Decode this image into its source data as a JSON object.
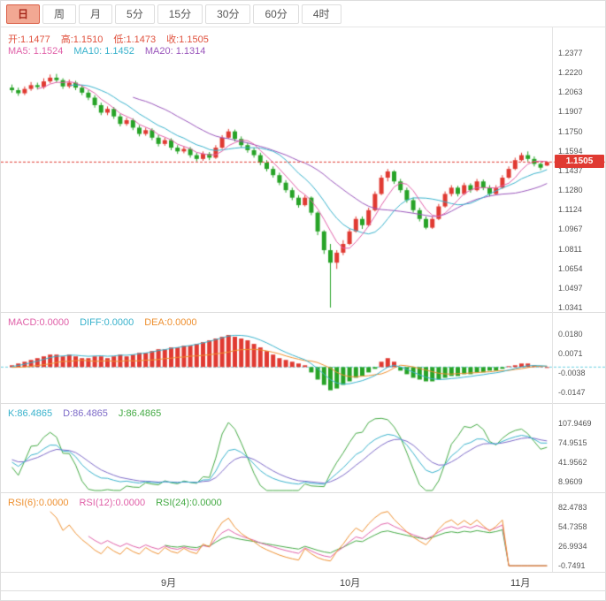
{
  "toolbar": {
    "tabs": [
      {
        "label": "日",
        "name": "day",
        "active": true
      },
      {
        "label": "周",
        "name": "week",
        "active": false
      },
      {
        "label": "月",
        "name": "month",
        "active": false
      },
      {
        "label": "5分",
        "name": "5min",
        "active": false
      },
      {
        "label": "15分",
        "name": "15min",
        "active": false
      },
      {
        "label": "30分",
        "name": "30min",
        "active": false
      },
      {
        "label": "60分",
        "name": "60min",
        "active": false
      },
      {
        "label": "4时",
        "name": "4hour",
        "active": false
      }
    ]
  },
  "main_chart": {
    "ohlc": {
      "open": "开:1.1477",
      "high": "高:1.1510",
      "low": "低:1.1473",
      "close": "收:1.1505"
    },
    "ma": {
      "ma5": "MA5: 1.1524",
      "ma10": "MA10: 1.1452",
      "ma20": "MA20: 1.1314"
    },
    "y_axis": [
      "1.2377",
      "1.2220",
      "1.2063",
      "1.1907",
      "1.1750",
      "1.1594",
      "1.1437",
      "1.1280",
      "1.1124",
      "1.0967",
      "1.0811",
      "1.0654",
      "1.0497",
      "1.0341"
    ],
    "current_price": "1.1505"
  },
  "macd_panel": {
    "header": {
      "macd": "MACD:0.0000",
      "diff": "DIFF:0.0000",
      "dea": "DEA:0.0000"
    },
    "y_axis": [
      "0.0180",
      "0.0071",
      "-0.0038",
      "-0.0147"
    ]
  },
  "kdj_panel": {
    "header": {
      "k": "K:86.4865",
      "d": "D:86.4865",
      "j": "J:86.4865"
    },
    "y_axis": [
      "107.9469",
      "74.9515",
      "41.9562",
      "8.9609"
    ]
  },
  "rsi_panel": {
    "header": {
      "r6": "RSI(6):0.0000",
      "r12": "RSI(12):0.0000",
      "r24": "RSI(24):0.0000"
    },
    "y_axis": [
      "82.4783",
      "54.7358",
      "26.9934",
      "-0.7491"
    ]
  },
  "x_axis": {
    "labels": [
      "9月",
      "10月",
      "11月"
    ]
  },
  "colors": {
    "up": "#e03a32",
    "down": "#27a327",
    "badge": "#e03a32",
    "ma5": "#e060a8",
    "ma10": "#38b2cc",
    "ma20": "#9955bb",
    "diff": "#38b2cc",
    "dea": "#ee9030",
    "dashed": "#69cfe0",
    "k": "#38b2cc",
    "d": "#7d6ac8",
    "j": "#44aa44",
    "rsi6": "#ee9030",
    "rsi12": "#e060a8",
    "rsi24": "#44aa44"
  },
  "chart_data": [
    {
      "id": "price",
      "type": "candlestick",
      "title": "EUR/USD daily candles with MA5/MA10/MA20",
      "y_ticks": [
        1.2377,
        1.222,
        1.2063,
        1.1907,
        1.175,
        1.1594,
        1.1437,
        1.128,
        1.1124,
        1.0967,
        1.0811,
        1.0654,
        1.0497,
        1.0341
      ],
      "x_labels": [
        "9月",
        "10月",
        "11月"
      ],
      "last_close": 1.1505,
      "candles": [
        [
          1.21,
          1.2125,
          1.206,
          1.208
        ],
        [
          1.208,
          1.21,
          1.2035,
          1.2055
        ],
        [
          1.2055,
          1.211,
          1.204,
          1.209
        ],
        [
          1.209,
          1.2145,
          1.2075,
          1.212
        ],
        [
          1.212,
          1.214,
          1.2085,
          1.2105
        ],
        [
          1.2105,
          1.2175,
          1.209,
          1.215
        ],
        [
          1.215,
          1.2205,
          1.2135,
          1.218
        ],
        [
          1.218,
          1.221,
          1.214,
          1.216
        ],
        [
          1.216,
          1.2175,
          1.209,
          1.211
        ],
        [
          1.211,
          1.2165,
          1.2095,
          1.214
        ],
        [
          1.214,
          1.2155,
          1.208,
          1.21
        ],
        [
          1.21,
          1.212,
          1.204,
          1.206
        ],
        [
          1.206,
          1.208,
          1.2,
          1.202
        ],
        [
          1.202,
          1.204,
          1.194,
          1.196
        ],
        [
          1.196,
          1.198,
          1.188,
          1.19
        ],
        [
          1.19,
          1.195,
          1.188,
          1.193
        ],
        [
          1.193,
          1.1945,
          1.185,
          1.187
        ],
        [
          1.187,
          1.189,
          1.179,
          1.181
        ],
        [
          1.181,
          1.186,
          1.1795,
          1.184
        ],
        [
          1.184,
          1.1855,
          1.176,
          1.178
        ],
        [
          1.178,
          1.18,
          1.171,
          1.173
        ],
        [
          1.173,
          1.178,
          1.1715,
          1.176
        ],
        [
          1.176,
          1.1775,
          1.168,
          1.17
        ],
        [
          1.17,
          1.172,
          1.163,
          1.165
        ],
        [
          1.165,
          1.17,
          1.1635,
          1.168
        ],
        [
          1.168,
          1.1695,
          1.16,
          1.162
        ],
        [
          1.162,
          1.164,
          1.157,
          1.159
        ],
        [
          1.159,
          1.163,
          1.1575,
          1.161
        ],
        [
          1.161,
          1.1625,
          1.154,
          1.156
        ],
        [
          1.156,
          1.158,
          1.151,
          1.153
        ],
        [
          1.153,
          1.159,
          1.1515,
          1.157
        ],
        [
          1.157,
          1.1585,
          1.152,
          1.154
        ],
        [
          1.154,
          1.164,
          1.153,
          1.162
        ],
        [
          1.162,
          1.172,
          1.161,
          1.17
        ],
        [
          1.17,
          1.177,
          1.169,
          1.175
        ],
        [
          1.175,
          1.1765,
          1.167,
          1.169
        ],
        [
          1.169,
          1.171,
          1.162,
          1.164
        ],
        [
          1.164,
          1.166,
          1.158,
          1.16
        ],
        [
          1.16,
          1.162,
          1.154,
          1.156
        ],
        [
          1.156,
          1.158,
          1.148,
          1.15
        ],
        [
          1.15,
          1.152,
          1.143,
          1.145
        ],
        [
          1.145,
          1.147,
          1.138,
          1.14
        ],
        [
          1.14,
          1.142,
          1.132,
          1.134
        ],
        [
          1.134,
          1.136,
          1.126,
          1.128
        ],
        [
          1.128,
          1.13,
          1.12,
          1.122
        ],
        [
          1.122,
          1.124,
          1.114,
          1.116
        ],
        [
          1.116,
          1.124,
          1.115,
          1.122
        ],
        [
          1.122,
          1.123,
          1.108,
          1.11
        ],
        [
          1.11,
          1.111,
          1.092,
          1.095
        ],
        [
          1.095,
          1.096,
          1.077,
          1.08
        ],
        [
          1.08,
          1.085,
          1.0341,
          1.07
        ],
        [
          1.07,
          1.08,
          1.065,
          1.078
        ],
        [
          1.078,
          1.088,
          1.076,
          1.085
        ],
        [
          1.085,
          1.097,
          1.084,
          1.095
        ],
        [
          1.095,
          1.107,
          1.094,
          1.105
        ],
        [
          1.105,
          1.107,
          1.097,
          1.1
        ],
        [
          1.1,
          1.114,
          1.099,
          1.112
        ],
        [
          1.112,
          1.127,
          1.111,
          1.125
        ],
        [
          1.125,
          1.14,
          1.124,
          1.138
        ],
        [
          1.138,
          1.145,
          1.135,
          1.143
        ],
        [
          1.143,
          1.144,
          1.133,
          1.135
        ],
        [
          1.135,
          1.137,
          1.126,
          1.128
        ],
        [
          1.128,
          1.13,
          1.118,
          1.12
        ],
        [
          1.12,
          1.122,
          1.11,
          1.112
        ],
        [
          1.112,
          1.114,
          1.103,
          1.105
        ],
        [
          1.105,
          1.107,
          1.0967,
          1.098
        ],
        [
          1.098,
          1.107,
          1.097,
          1.105
        ],
        [
          1.105,
          1.117,
          1.104,
          1.115
        ],
        [
          1.115,
          1.127,
          1.114,
          1.125
        ],
        [
          1.125,
          1.132,
          1.123,
          1.13
        ],
        [
          1.13,
          1.1315,
          1.123,
          1.125
        ],
        [
          1.125,
          1.134,
          1.124,
          1.132
        ],
        [
          1.132,
          1.1335,
          1.126,
          1.128
        ],
        [
          1.128,
          1.137,
          1.127,
          1.135
        ],
        [
          1.135,
          1.1365,
          1.128,
          1.13
        ],
        [
          1.13,
          1.132,
          1.123,
          1.125
        ],
        [
          1.125,
          1.132,
          1.124,
          1.13
        ],
        [
          1.13,
          1.14,
          1.129,
          1.138
        ],
        [
          1.138,
          1.147,
          1.137,
          1.145
        ],
        [
          1.145,
          1.154,
          1.144,
          1.152
        ],
        [
          1.152,
          1.158,
          1.151,
          1.156
        ],
        [
          1.156,
          1.159,
          1.151,
          1.153
        ],
        [
          1.153,
          1.155,
          1.147,
          1.149
        ],
        [
          1.149,
          1.15,
          1.144,
          1.146
        ],
        [
          1.1477,
          1.151,
          1.1473,
          1.1505
        ]
      ]
    },
    {
      "id": "macd",
      "type": "bar",
      "y_ticks": [
        0.018,
        0.0071,
        -0.0038,
        -0.0147
      ],
      "histogram": [
        0.001,
        0.002,
        0.003,
        0.004,
        0.005,
        0.006,
        0.007,
        0.007,
        0.006,
        0.007,
        0.006,
        0.005,
        0.005,
        0.006,
        0.006,
        0.005,
        0.006,
        0.007,
        0.006,
        0.007,
        0.008,
        0.008,
        0.009,
        0.01,
        0.01,
        0.011,
        0.011,
        0.012,
        0.012,
        0.013,
        0.014,
        0.015,
        0.016,
        0.017,
        0.018,
        0.017,
        0.016,
        0.015,
        0.013,
        0.011,
        0.009,
        0.007,
        0.005,
        0.004,
        0.003,
        0.002,
        0.001,
        -0.003,
        -0.007,
        -0.01,
        -0.013,
        -0.012,
        -0.01,
        -0.008,
        -0.006,
        -0.005,
        -0.003,
        -0.001,
        0.003,
        0.005,
        0.003,
        -0.002,
        -0.004,
        -0.006,
        -0.007,
        -0.008,
        -0.008,
        -0.007,
        -0.006,
        -0.005,
        -0.005,
        -0.004,
        -0.004,
        -0.003,
        -0.003,
        -0.002,
        -0.002,
        -0.001,
        0.0005,
        0.001,
        0.002,
        0.002,
        0.001,
        0.0005,
        0.0
      ]
    },
    {
      "id": "kdj",
      "type": "line",
      "periods": [
        9,
        3,
        3
      ],
      "y_ticks": [
        107.9469,
        74.9515,
        41.9562,
        8.9609
      ]
    },
    {
      "id": "rsi",
      "type": "line",
      "periods": [
        6,
        12,
        24
      ],
      "y_ticks": [
        82.4783,
        54.7358,
        26.9934,
        -0.7491
      ],
      "flat_zero_tail": 7
    }
  ]
}
